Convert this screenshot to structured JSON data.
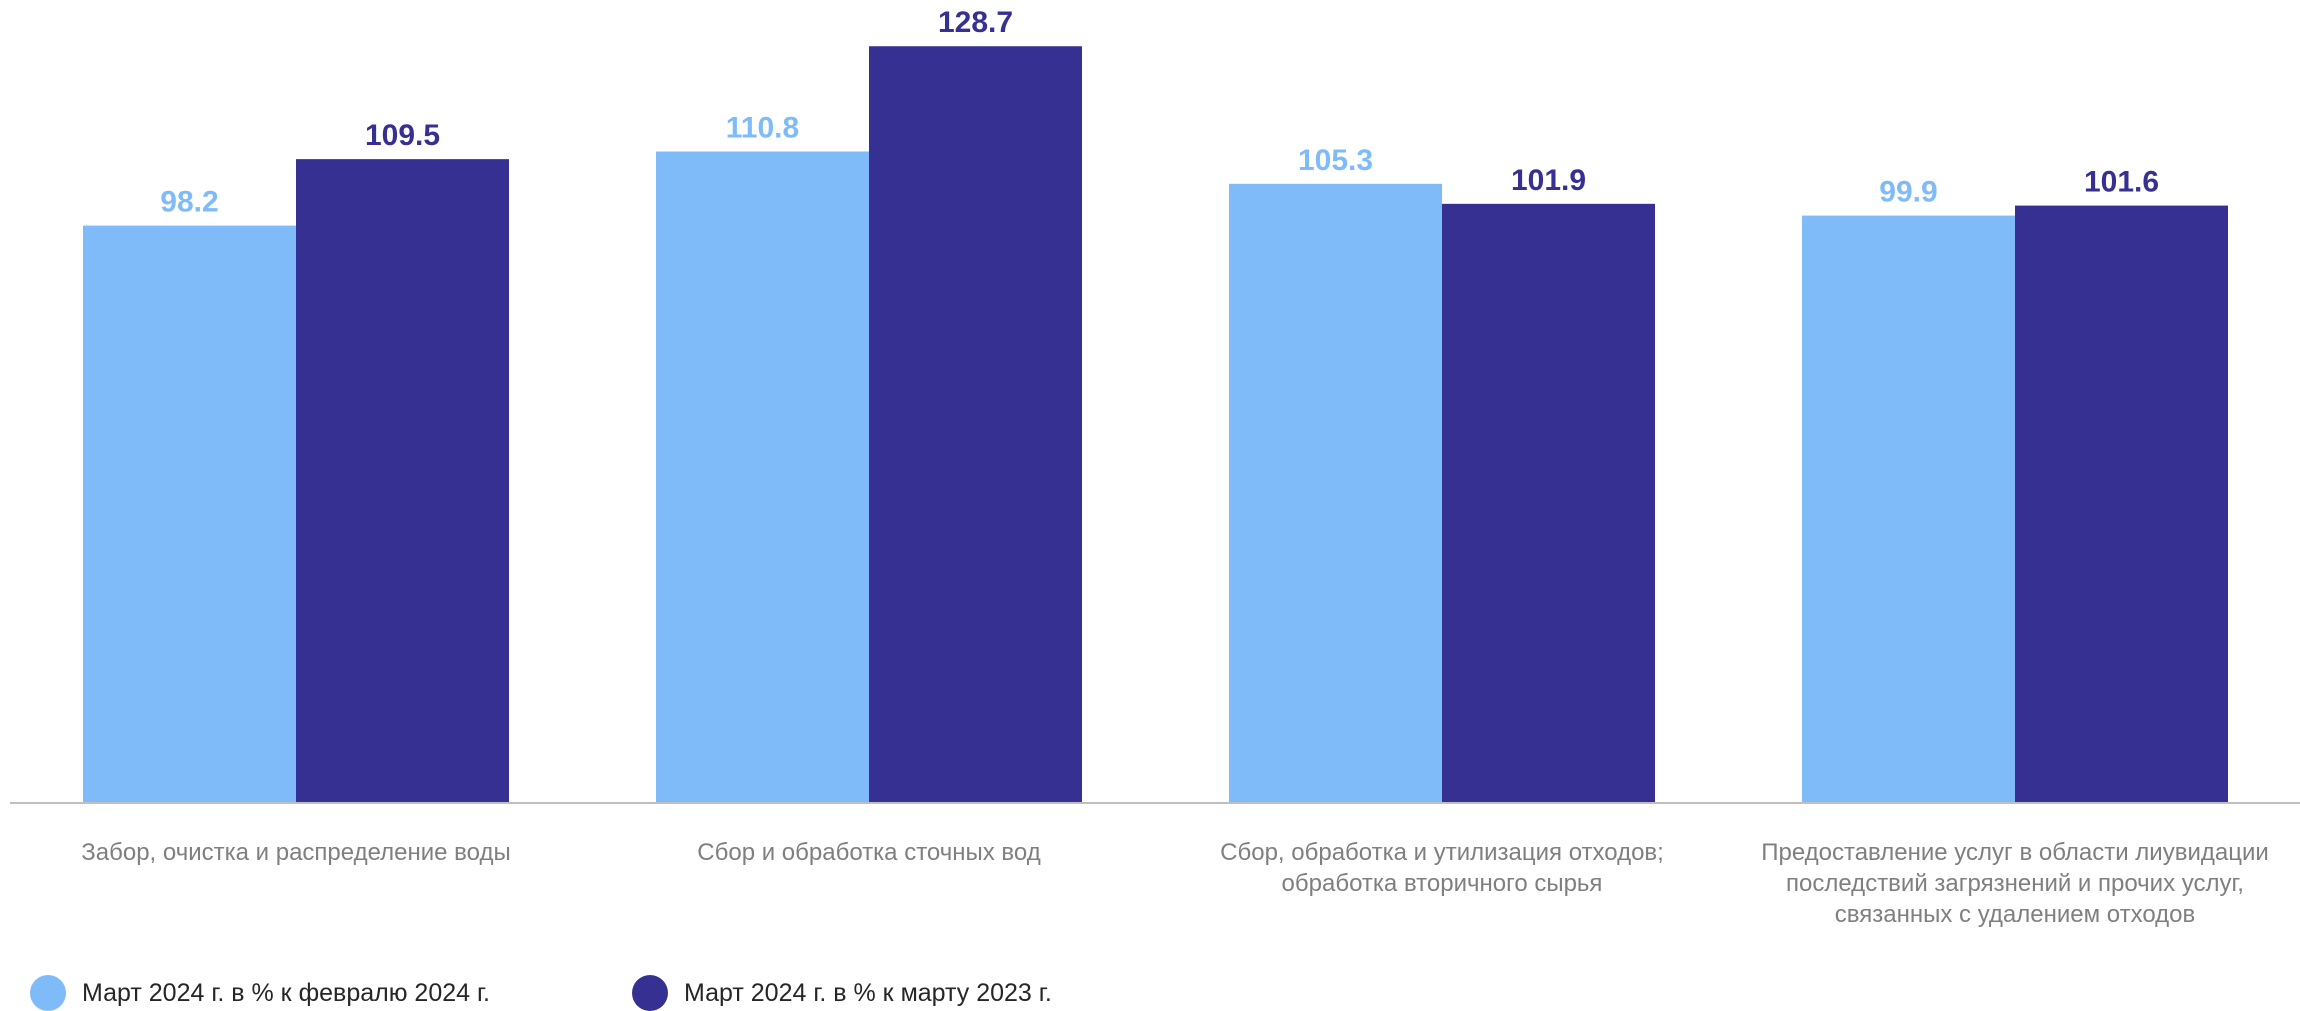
{
  "chart_data": {
    "type": "bar",
    "categories": [
      [
        "Забор, очистка и распределение воды"
      ],
      [
        "Сбор и обработка сточных вод"
      ],
      [
        "Сбор, обработка и утилизация отходов;",
        "обработка вторичного сырья"
      ],
      [
        "Предоставление услуг в области лиувидации",
        "последствий загрязнений и прочих услуг,",
        "связанных с удалением отходов"
      ]
    ],
    "series": [
      {
        "name": "Март 2024 г. в % к февралю 2024 г.",
        "color": "#7FBBF9",
        "values": [
          98.2,
          110.8,
          105.3,
          99.9
        ]
      },
      {
        "name": "Март 2024 г. в % к марту 2023 г.",
        "color": "#363093",
        "values": [
          109.5,
          128.7,
          101.9,
          101.6
        ]
      }
    ],
    "ylim": [
      0,
      130
    ],
    "grid": false,
    "legend_position": "bottom-left"
  }
}
